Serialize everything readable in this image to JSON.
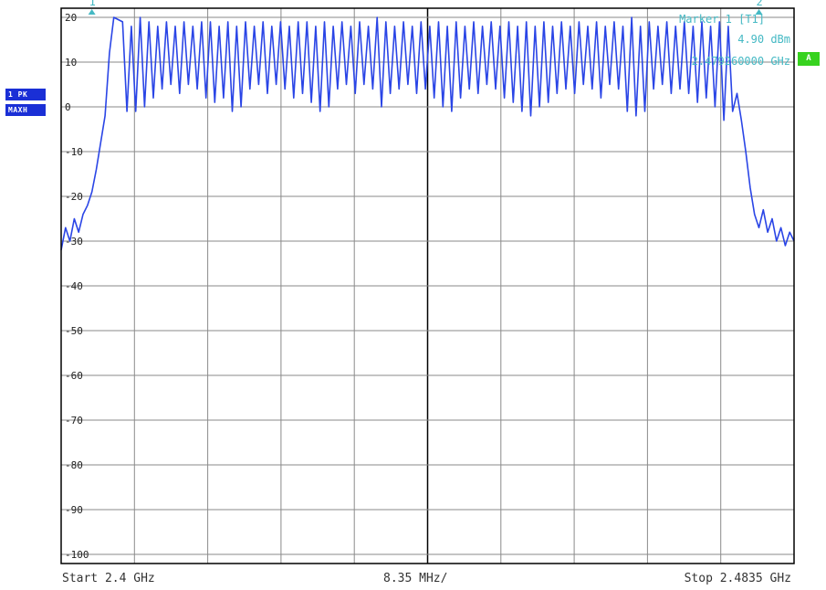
{
  "chart_data": {
    "type": "line",
    "title": "",
    "xlabel": "",
    "ylabel": "",
    "xlim": [
      2.4,
      2.4835
    ],
    "ylim": [
      -105,
      25
    ],
    "x_unit": "GHz",
    "y_unit": "dBm",
    "y_ticks": [
      20,
      10,
      0,
      -10,
      -20,
      -30,
      -40,
      -50,
      -60,
      -70,
      -80,
      -90,
      -100
    ],
    "y_tick_labels": [
      "20",
      "10",
      "0",
      "-10",
      "-20",
      "-30",
      "-40",
      "-50",
      "-60",
      "-70",
      "-80",
      "-90",
      "-100"
    ],
    "grid": true,
    "series": [
      {
        "color": "#2a45e6",
        "x": [
          2.4,
          2.4005,
          2.401,
          2.4015,
          2.402,
          2.4025,
          2.403,
          2.4035,
          2.404,
          2.4045,
          2.405,
          2.4055,
          2.406,
          2.407,
          2.4075,
          2.408,
          2.4085,
          2.409,
          2.4095,
          2.41,
          2.4105,
          2.411,
          2.4115,
          2.412,
          2.4125,
          2.413,
          2.4135,
          2.414,
          2.4145,
          2.415,
          2.4155,
          2.416,
          2.4165,
          2.417,
          2.4175,
          2.418,
          2.4185,
          2.419,
          2.4195,
          2.42,
          2.4205,
          2.421,
          2.4215,
          2.422,
          2.4225,
          2.423,
          2.4235,
          2.424,
          2.4245,
          2.425,
          2.4255,
          2.426,
          2.4265,
          2.427,
          2.4275,
          2.428,
          2.4285,
          2.429,
          2.4295,
          2.43,
          2.4305,
          2.431,
          2.4315,
          2.432,
          2.4325,
          2.433,
          2.4335,
          2.434,
          2.4345,
          2.435,
          2.4355,
          2.436,
          2.4365,
          2.437,
          2.4375,
          2.438,
          2.4385,
          2.439,
          2.4395,
          2.44,
          2.4405,
          2.441,
          2.4415,
          2.442,
          2.4425,
          2.443,
          2.4435,
          2.444,
          2.4445,
          2.445,
          2.4455,
          2.446,
          2.4465,
          2.447,
          2.4475,
          2.448,
          2.4485,
          2.449,
          2.4495,
          2.45,
          2.4505,
          2.451,
          2.4515,
          2.452,
          2.4525,
          2.453,
          2.4535,
          2.454,
          2.4545,
          2.455,
          2.4555,
          2.456,
          2.4565,
          2.457,
          2.4575,
          2.458,
          2.4585,
          2.459,
          2.4595,
          2.46,
          2.4605,
          2.461,
          2.4615,
          2.462,
          2.4625,
          2.463,
          2.4635,
          2.464,
          2.4645,
          2.465,
          2.4655,
          2.466,
          2.4665,
          2.467,
          2.4675,
          2.468,
          2.4685,
          2.469,
          2.4695,
          2.47,
          2.4705,
          2.471,
          2.4715,
          2.472,
          2.4725,
          2.473,
          2.4735,
          2.474,
          2.4745,
          2.475,
          2.4755,
          2.476,
          2.4765,
          2.477,
          2.4775,
          2.478,
          2.4785,
          2.479,
          2.4795,
          2.48,
          2.4805,
          2.481,
          2.4815,
          2.482,
          2.4825,
          2.483,
          2.4835
        ],
        "values": [
          -32,
          -27,
          -30,
          -25,
          -28,
          -24,
          -22,
          -19,
          -14,
          -8,
          -2,
          12,
          20,
          19,
          -1,
          18,
          -1,
          20,
          0,
          19,
          2,
          18,
          4,
          19,
          5,
          18,
          3,
          19,
          5,
          18,
          4,
          19,
          2,
          19,
          1,
          18,
          2,
          19,
          -1,
          18,
          0,
          19,
          4,
          18,
          5,
          19,
          3,
          18,
          5,
          19,
          4,
          18,
          2,
          19,
          3,
          19,
          1,
          18,
          -1,
          19,
          0,
          18,
          4,
          19,
          5,
          18,
          3,
          19,
          5,
          18,
          4,
          20,
          0,
          19,
          3,
          18,
          4,
          19,
          5,
          18,
          3,
          19,
          4,
          18,
          2,
          19,
          0,
          18,
          -1,
          19,
          2,
          18,
          4,
          19,
          3,
          18,
          5,
          19,
          4,
          18,
          2,
          19,
          1,
          18,
          -1,
          19,
          -2,
          18,
          0,
          19,
          1,
          18,
          3,
          19,
          4,
          18,
          3,
          19,
          5,
          18,
          4,
          19,
          2,
          18,
          5,
          19,
          4,
          18,
          -1,
          20,
          -2,
          18,
          -1,
          19,
          4,
          18,
          5,
          19,
          3,
          18,
          4,
          19,
          3,
          18,
          1,
          19,
          2,
          18,
          0,
          19,
          -3,
          18,
          -1,
          3,
          -3,
          -10,
          -18,
          -24,
          -27,
          -23,
          -28,
          -25,
          -30,
          -27,
          -31,
          -28,
          -30
        ]
      }
    ],
    "markers": [
      {
        "label": "1",
        "x": 2.4035,
        "y": 20
      },
      {
        "label": "2",
        "x": 2.4795,
        "y": 20
      }
    ],
    "marker_readout": {
      "line1": "Marker 1 [T1]",
      "line2": "4.90 dBm",
      "line3": "2.479260000 GHz"
    }
  },
  "left_badges": {
    "trace": "1 PK",
    "mode": "MAXH"
  },
  "right_badge": "A",
  "footer": {
    "start": "Start 2.4 GHz",
    "span": "8.35 MHz/",
    "stop": "Stop 2.4835 GHz"
  },
  "colors": {
    "trace": "#2a45e6",
    "marker": "#45b9c4",
    "grid": "#8a8a8a",
    "frame": "#000000",
    "badge_blue": "#1a2fd6",
    "badge_green": "#37d21f"
  }
}
